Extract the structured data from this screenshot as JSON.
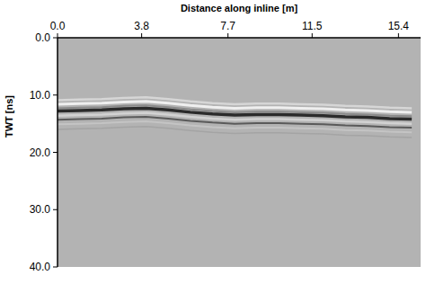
{
  "chart_data": {
    "type": "radargram",
    "xlabel": "Distance along inline [m]",
    "ylabel": "TWT [ns]",
    "x": [
      0,
      1,
      2,
      3,
      4,
      5,
      6,
      7,
      8,
      9,
      10,
      11,
      12,
      13,
      14,
      15,
      16
    ],
    "values": [
      12.8,
      12.7,
      12.6,
      12.4,
      12.3,
      12.6,
      13.0,
      13.3,
      13.5,
      13.4,
      13.4,
      13.5,
      13.6,
      13.8,
      13.9,
      14.1,
      14.2
    ],
    "color": "#2b2b2b",
    "xlim": [
      0,
      16.4
    ],
    "xticks": [
      {
        "value": 0,
        "label": "0.0"
      },
      3.8,
      7.7,
      11.5,
      15.4
    ],
    "ylim": [
      0,
      40
    ],
    "yticks": [
      {
        "value": 0,
        "label": "0.0"
      },
      {
        "value": 10,
        "label": "10.0"
      },
      {
        "value": 20,
        "label": "20.0"
      },
      {
        "value": 30,
        "label": "30.0"
      },
      {
        "value": 40,
        "label": "40.0"
      }
    ]
  }
}
